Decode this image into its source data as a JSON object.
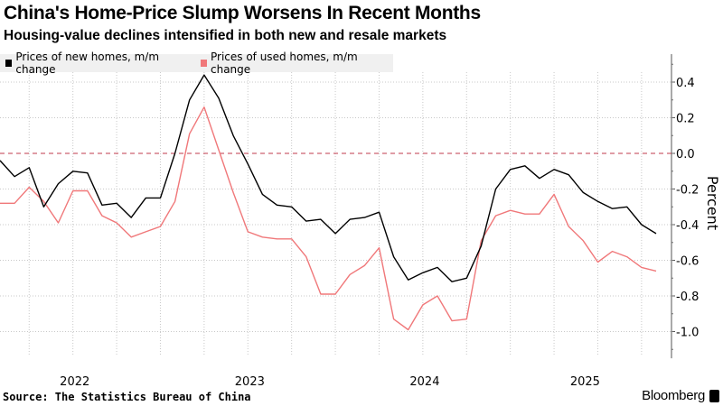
{
  "title": "China's Home-Price Slump Worsens In Recent Months",
  "subtitle": "Housing-value declines intensified in both new and resale markets",
  "source": "Source: The Statistics Bureau of China",
  "brand": "Bloomberg",
  "chart_data": {
    "type": "line",
    "title": "China's Home-Price Slump Worsens In Recent Months",
    "ylabel": "Percent",
    "xlabel": "",
    "ylim": [
      -1.15,
      0.55
    ],
    "yticks": [
      "0.4",
      "0.2",
      "0.0",
      "-0.2",
      "-0.4",
      "-0.6",
      "-0.8",
      "-1.0"
    ],
    "ytick_values": [
      0.4,
      0.2,
      0,
      -0.2,
      -0.4,
      -0.6,
      -0.8,
      -1.0
    ],
    "xtick_labels": [
      "2022",
      "2023",
      "2024",
      "2025"
    ],
    "grid": true,
    "legend_placement": "top-left",
    "reference_line": {
      "value": 0,
      "color": "#c0394b",
      "style": "dashed"
    },
    "x": [
      "2022-01",
      "2022-02",
      "2022-03",
      "2022-04",
      "2022-05",
      "2022-06",
      "2022-07",
      "2022-08",
      "2022-09",
      "2022-10",
      "2022-11",
      "2022-12",
      "2023-01",
      "2023-02",
      "2023-03",
      "2023-04",
      "2023-05",
      "2023-06",
      "2023-07",
      "2023-08",
      "2023-09",
      "2023-10",
      "2023-11",
      "2023-12",
      "2024-01",
      "2024-02",
      "2024-03",
      "2024-04",
      "2024-05",
      "2024-06",
      "2024-07",
      "2024-08",
      "2024-09",
      "2024-10",
      "2024-11",
      "2024-12",
      "2025-01",
      "2025-02",
      "2025-03",
      "2025-04",
      "2025-05",
      "2025-06",
      "2025-07",
      "2025-08",
      "2025-09",
      "2025-10"
    ],
    "series": [
      {
        "name": "Prices of new homes, m/m change",
        "color": "#000000",
        "values": [
          -0.04,
          -0.13,
          -0.08,
          -0.3,
          -0.17,
          -0.1,
          -0.11,
          -0.29,
          -0.28,
          -0.36,
          -0.25,
          -0.25,
          0.0,
          0.3,
          0.44,
          0.31,
          0.1,
          -0.06,
          -0.23,
          -0.29,
          -0.3,
          -0.38,
          -0.37,
          -0.45,
          -0.37,
          -0.36,
          -0.33,
          -0.58,
          -0.71,
          -0.67,
          -0.64,
          -0.72,
          -0.7,
          -0.52,
          -0.2,
          -0.09,
          -0.07,
          -0.14,
          -0.09,
          -0.12,
          -0.22,
          -0.27,
          -0.31,
          -0.3,
          -0.4,
          -0.45
        ]
      },
      {
        "name": "Prices of used homes, m/m change",
        "color": "#f0787a",
        "values": [
          -0.28,
          -0.28,
          -0.19,
          -0.27,
          -0.39,
          -0.21,
          -0.21,
          -0.35,
          -0.39,
          -0.47,
          -0.44,
          -0.41,
          -0.27,
          0.11,
          0.26,
          0.02,
          -0.22,
          -0.44,
          -0.47,
          -0.48,
          -0.48,
          -0.58,
          -0.79,
          -0.79,
          -0.68,
          -0.63,
          -0.53,
          -0.93,
          -0.99,
          -0.85,
          -0.8,
          -0.94,
          -0.93,
          -0.49,
          -0.35,
          -0.32,
          -0.34,
          -0.34,
          -0.23,
          -0.41,
          -0.49,
          -0.61,
          -0.55,
          -0.58,
          -0.64,
          -0.66
        ]
      }
    ]
  }
}
